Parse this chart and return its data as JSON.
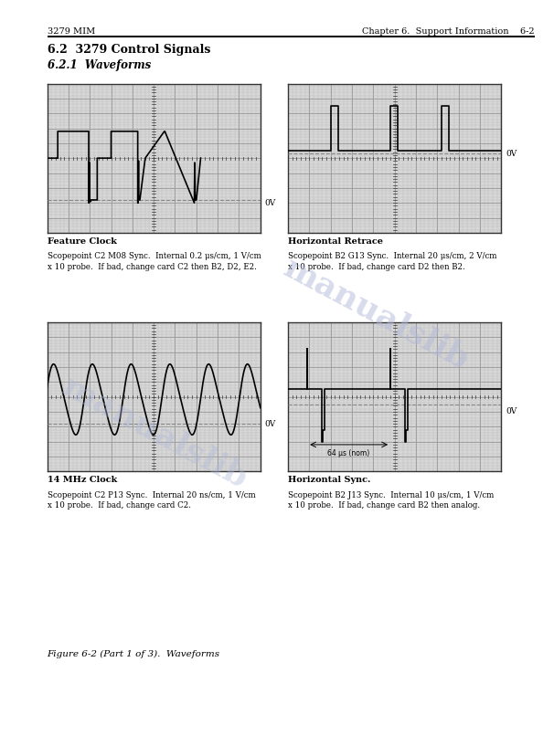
{
  "page_header_left": "3279 MIM",
  "page_header_right": "Chapter 6.  Support Information    6-2",
  "section_title": "6.2  3279 Control Signals",
  "subsection_title": "6.2.1  Waveforms",
  "figure_caption": "Figure 6-2 (Part 1 of 3).  Waveforms",
  "plots": [
    {
      "title": "Feature Clock",
      "desc1": "Scopepoint C2 M08 Sync.  Internal 0.2 μs/cm, 1 V/cm",
      "desc2": "x 10 probe.  If bad, change card C2 then B2, D2, E2.",
      "ov_label": "0V",
      "position": "top_left"
    },
    {
      "title": "Horizontal Retrace",
      "desc1": "Scopepoint B2 G13 Sync.  Internal 20 μs/cm, 2 V/cm",
      "desc2": "x 10 probe.  If bad, change card D2 then B2.",
      "ov_label": "0V",
      "position": "top_right"
    },
    {
      "title": "14 MHz Clock",
      "desc1": "Scopepoint C2 P13 Sync.  Internal 20 ns/cm, 1 V/cm",
      "desc2": "x 10 probe.  If bad, change card C2.",
      "ov_label": "0V",
      "position": "bottom_left"
    },
    {
      "title": "Horizontal Sync.",
      "desc1": "Scopepoint B2 J13 Sync.  Internal 10 μs/cm, 1 V/cm",
      "desc2": "x 10 probe.  If bad, change card B2 then analog.",
      "ov_label": "0V",
      "annotation": "64 μs (nom)",
      "position": "bottom_right"
    }
  ],
  "grid_major_color": "#999999",
  "grid_minor_color": "#bbbbbb",
  "bg_color": "#d8d8d8",
  "waveform_color": "#000000",
  "dashed_color": "#888888",
  "watermark_color": "#b0b8d8",
  "watermark_text": "manualslib",
  "page_bg": "#ffffff"
}
